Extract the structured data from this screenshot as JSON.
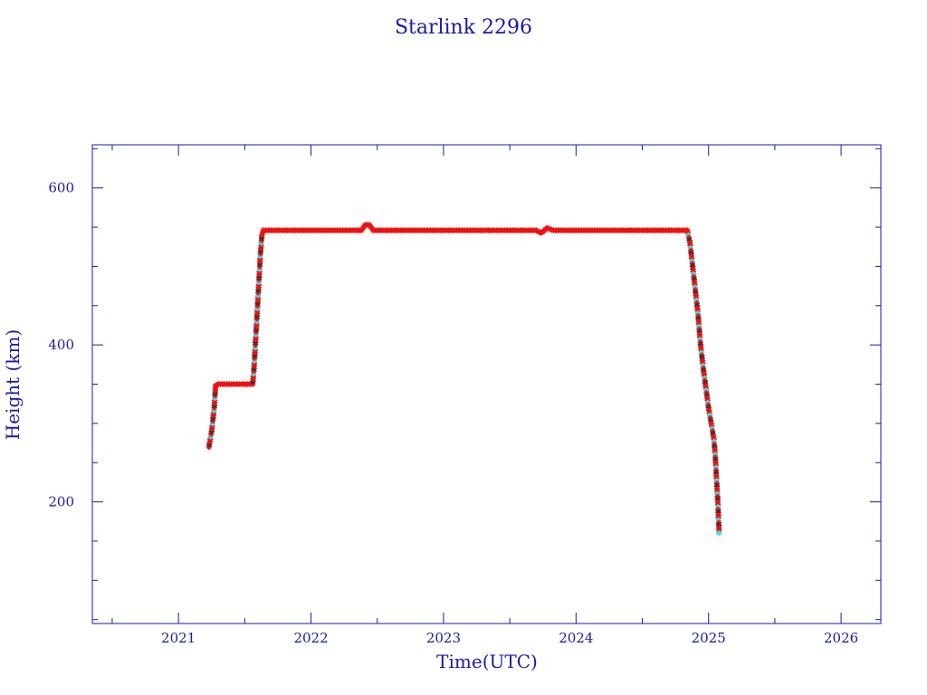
{
  "chart_data": {
    "type": "scatter",
    "title": "Starlink 2296",
    "xlabel": "Time(UTC)",
    "ylabel": "Height (km)",
    "xlim": [
      2020.35,
      2026.3
    ],
    "ylim": [
      45,
      655
    ],
    "x_ticks": [
      "2021",
      "2022",
      "2023",
      "2024",
      "2025",
      "2026"
    ],
    "y_ticks": [
      "200",
      "400",
      "600"
    ],
    "grid": false,
    "legend": "none",
    "colors": {
      "axis": "#1a1aa6",
      "primary_marker": "#ee1111",
      "secondary_marker": "#33e6f0",
      "dark_marker": "#333333"
    },
    "series": [
      {
        "x": [
          2021.23,
          2021.25,
          2021.27,
          2021.28,
          2021.3,
          2021.35,
          2021.4,
          2021.5,
          2021.56,
          2021.57,
          2021.58,
          2021.59,
          2021.6,
          2021.61,
          2021.62,
          2021.63,
          2021.64,
          2021.7,
          2021.8,
          2021.9,
          2022.0,
          2022.1,
          2022.2,
          2022.3,
          2022.38,
          2022.41,
          2022.44,
          2022.47,
          2022.55,
          2022.7,
          2022.9,
          2023.0,
          2023.2,
          2023.4,
          2023.6,
          2023.7,
          2023.73,
          2023.75,
          2023.78,
          2023.83,
          2024.0,
          2024.2,
          2024.4,
          2024.6,
          2024.8,
          2024.84,
          2024.86,
          2024.88,
          2024.9,
          2024.92,
          2024.94,
          2024.96,
          2024.98,
          2025.0,
          2025.02,
          2025.04,
          2025.05,
          2025.06,
          2025.07,
          2025.075,
          2025.08
        ],
        "y": [
          270,
          290,
          320,
          348,
          350,
          350,
          350,
          350,
          350,
          370,
          400,
          430,
          460,
          490,
          520,
          540,
          546,
          546,
          546,
          546,
          546,
          546,
          546,
          546,
          546,
          553,
          553,
          546,
          546,
          546,
          546,
          546,
          546,
          546,
          546,
          546,
          543,
          544,
          549,
          546,
          546,
          546,
          546,
          546,
          546,
          546,
          530,
          500,
          470,
          440,
          400,
          370,
          345,
          320,
          300,
          280,
          260,
          230,
          200,
          180,
          160
        ]
      }
    ]
  }
}
